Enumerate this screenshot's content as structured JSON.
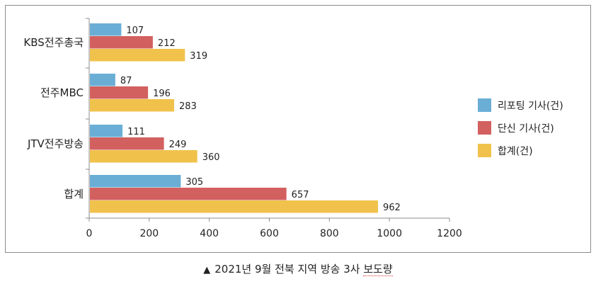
{
  "chart_data": {
    "type": "bar",
    "orientation": "horizontal",
    "categories": [
      "KBS전주총국",
      "전주MBC",
      "JTV전주방송",
      "합계"
    ],
    "series": [
      {
        "name": "리포팅 기사(건)",
        "color": "#6aaed6",
        "values": [
          107,
          87,
          111,
          305
        ]
      },
      {
        "name": "단신 기사(건)",
        "color": "#d2605f",
        "values": [
          212,
          196,
          249,
          657
        ]
      },
      {
        "name": "합계(건)",
        "color": "#f0c24b",
        "values": [
          319,
          283,
          360,
          962
        ]
      }
    ],
    "xlim": [
      0,
      1200
    ],
    "xticks": [
      0,
      200,
      400,
      600,
      800,
      1000,
      1200
    ],
    "grid": false,
    "legend": "right"
  },
  "caption": {
    "marker": "▲",
    "text_main": "2021년 9월 전북 지역 방송 3사 ",
    "text_underlined": "보도량"
  }
}
